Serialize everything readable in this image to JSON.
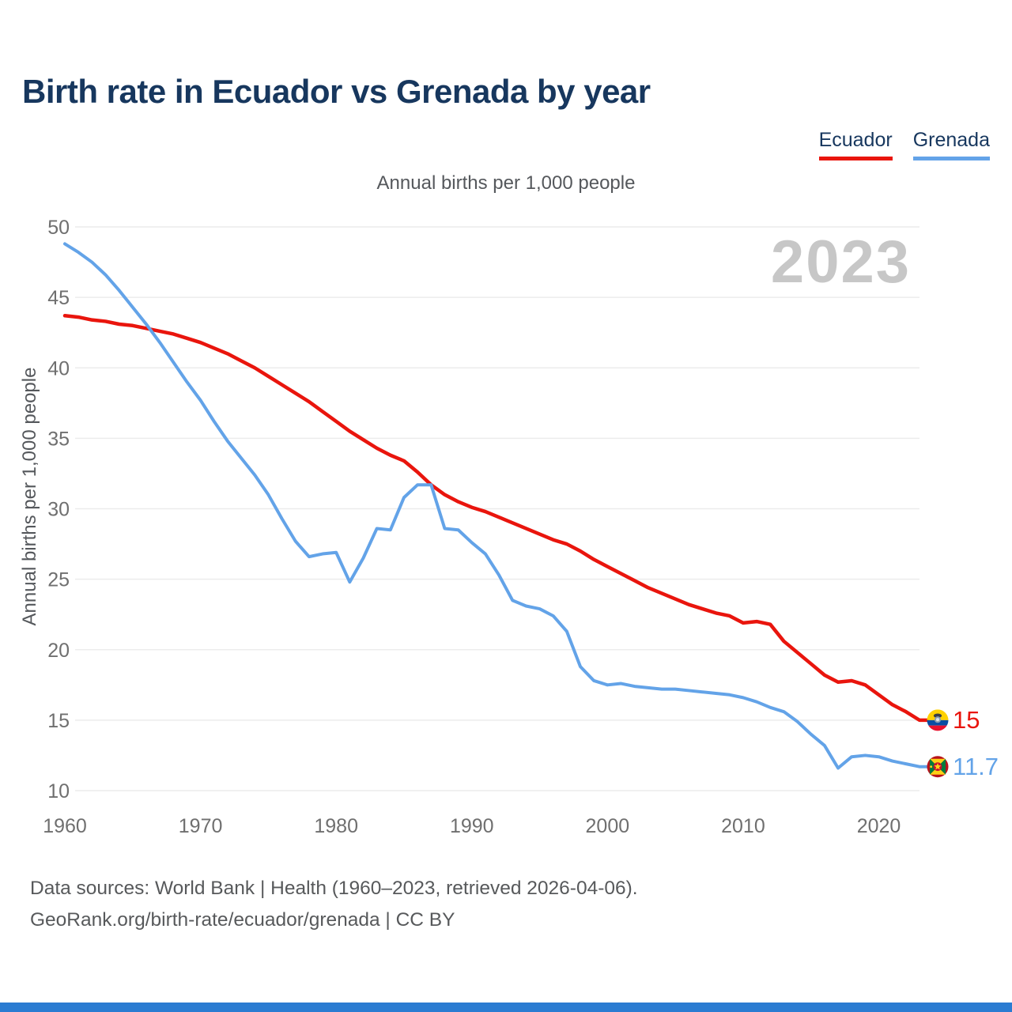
{
  "header": {
    "title": "Birth rate in Ecuador vs Grenada by year"
  },
  "footer": {
    "line1": "Data sources: World Bank | Health (1960–2023, retrieved 2026-04-06).",
    "line2": "GeoRank.org/birth-rate/ecuador/grenada | CC BY"
  },
  "accent_bar_color": "#2b7cd2",
  "chart_data": {
    "type": "line",
    "title": "Birth rate in Ecuador vs Grenada by year",
    "subtitle": "Annual births per 1,000 people",
    "ylabel": "Annual births per 1,000 people",
    "xlabel": "",
    "watermark": "2023",
    "grid": "horizontal",
    "legend_position": "top-right",
    "xlim": [
      1960,
      2023
    ],
    "ylim": [
      10,
      50
    ],
    "x_ticks": [
      1960,
      1970,
      1980,
      1990,
      2000,
      2010,
      2020
    ],
    "y_ticks": [
      10,
      15,
      20,
      25,
      30,
      35,
      40,
      45,
      50
    ],
    "x_years": {
      "start": 1960,
      "end": 2023,
      "step": 1
    },
    "series": [
      {
        "name": "Ecuador",
        "color": "#e9150d",
        "flag_icon": "ecuador-flag-icon",
        "end_label": "15",
        "end_value": 15,
        "values": [
          43.7,
          43.6,
          43.4,
          43.3,
          43.1,
          43.0,
          42.8,
          42.6,
          42.4,
          42.1,
          41.8,
          41.4,
          41.0,
          40.5,
          40.0,
          39.4,
          38.8,
          38.2,
          37.6,
          36.9,
          36.2,
          35.5,
          34.9,
          34.3,
          33.8,
          33.4,
          32.6,
          31.7,
          31.0,
          30.5,
          30.1,
          29.8,
          29.4,
          29.0,
          28.6,
          28.2,
          27.8,
          27.5,
          27.0,
          26.4,
          25.9,
          25.4,
          24.9,
          24.4,
          24.0,
          23.6,
          23.2,
          22.9,
          22.6,
          22.4,
          21.9,
          22.0,
          21.8,
          20.6,
          19.8,
          19.0,
          18.2,
          17.7,
          17.8,
          17.5,
          16.8,
          16.1,
          15.6,
          15.0
        ]
      },
      {
        "name": "Grenada",
        "color": "#63a3e8",
        "flag_icon": "grenada-flag-icon",
        "end_label": "11.7",
        "end_value": 11.7,
        "values": [
          48.8,
          48.2,
          47.5,
          46.6,
          45.5,
          44.3,
          43.1,
          41.8,
          40.4,
          39.0,
          37.7,
          36.2,
          34.8,
          33.6,
          32.4,
          31.0,
          29.3,
          27.7,
          26.6,
          26.8,
          26.9,
          24.8,
          26.5,
          28.6,
          28.5,
          30.8,
          31.7,
          31.7,
          28.6,
          28.5,
          27.6,
          26.8,
          25.3,
          23.5,
          23.1,
          22.9,
          22.4,
          21.3,
          18.8,
          17.8,
          17.5,
          17.6,
          17.4,
          17.3,
          17.2,
          17.2,
          17.1,
          17.0,
          16.9,
          16.8,
          16.6,
          16.3,
          15.9,
          15.6,
          14.9,
          14.0,
          13.2,
          11.6,
          12.4,
          12.5,
          12.4,
          12.1,
          11.9,
          11.7
        ]
      }
    ]
  }
}
